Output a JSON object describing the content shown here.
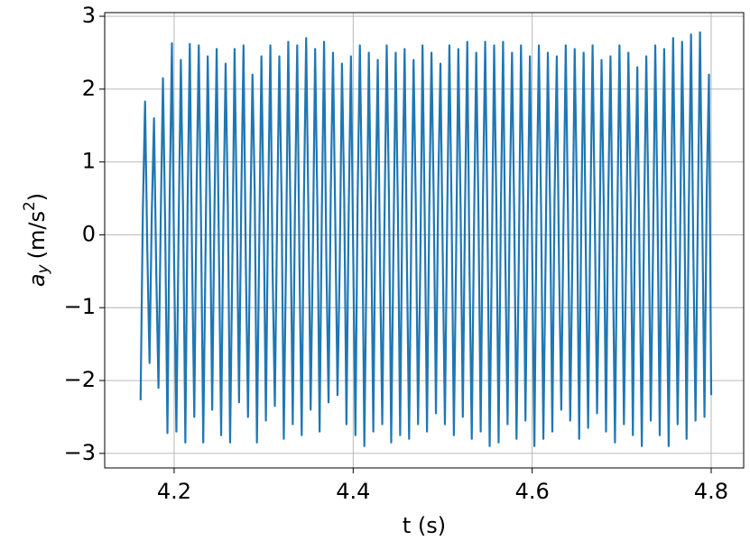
{
  "chart_data": {
    "type": "line",
    "x_label": "t (s)",
    "y_label": {
      "symbol": "a",
      "subscript": "y",
      "unit": "(m/s",
      "power": "2",
      "close": ")"
    },
    "xlim": [
      4.1224,
      4.8363
    ],
    "ylim": [
      -3.2,
      3.05
    ],
    "xticks": [
      4.2,
      4.4,
      4.6,
      4.8
    ],
    "yticks": [
      {
        "value": -3,
        "label": "−3"
      },
      {
        "value": -2,
        "label": "−2"
      },
      {
        "value": -1,
        "label": "−1"
      },
      0,
      1,
      2,
      3
    ],
    "grid": true,
    "series": [
      {
        "color": "#1f77b4",
        "x": [
          4.1625,
          4.165,
          4.1675,
          4.17,
          4.1725,
          4.175,
          4.1775,
          4.18,
          4.1825,
          4.185,
          4.1875,
          4.19,
          4.1925,
          4.195,
          4.1975,
          4.2,
          4.2025,
          4.205,
          4.2075,
          4.21,
          4.2125,
          4.215,
          4.2175,
          4.22,
          4.2225,
          4.225,
          4.2275,
          4.23,
          4.2325,
          4.235,
          4.2375,
          4.24,
          4.2425,
          4.245,
          4.2475,
          4.25,
          4.2525,
          4.255,
          4.2575,
          4.26,
          4.2625,
          4.265,
          4.2675,
          4.27,
          4.2725,
          4.275,
          4.2775,
          4.28,
          4.2825,
          4.285,
          4.2875,
          4.29,
          4.2925,
          4.295,
          4.2975,
          4.3,
          4.3025,
          4.305,
          4.3075,
          4.31,
          4.3125,
          4.315,
          4.3175,
          4.32,
          4.3225,
          4.325,
          4.3275,
          4.33,
          4.3325,
          4.335,
          4.3375,
          4.34,
          4.3425,
          4.345,
          4.3475,
          4.35,
          4.3525,
          4.355,
          4.3575,
          4.36,
          4.3625,
          4.365,
          4.3675,
          4.37,
          4.3725,
          4.375,
          4.3775,
          4.38,
          4.3825,
          4.385,
          4.3875,
          4.39,
          4.3925,
          4.395,
          4.3975,
          4.4,
          4.4025,
          4.405,
          4.4075,
          4.41,
          4.4125,
          4.415,
          4.4175,
          4.42,
          4.4225,
          4.425,
          4.4275,
          4.43,
          4.4325,
          4.435,
          4.4375,
          4.44,
          4.4425,
          4.445,
          4.4475,
          4.45,
          4.4525,
          4.455,
          4.4575,
          4.46,
          4.4625,
          4.465,
          4.4675,
          4.47,
          4.4725,
          4.475,
          4.4775,
          4.48,
          4.4825,
          4.485,
          4.4875,
          4.49,
          4.4925,
          4.495,
          4.4975,
          4.5,
          4.5025,
          4.505,
          4.5075,
          4.51,
          4.5125,
          4.515,
          4.5175,
          4.52,
          4.5225,
          4.525,
          4.5275,
          4.53,
          4.5325,
          4.535,
          4.5375,
          4.54,
          4.5425,
          4.545,
          4.5475,
          4.55,
          4.5525,
          4.555,
          4.5575,
          4.56,
          4.5625,
          4.565,
          4.5675,
          4.57,
          4.5725,
          4.575,
          4.5775,
          4.58,
          4.5825,
          4.585,
          4.5875,
          4.59,
          4.5925,
          4.595,
          4.5975,
          4.6,
          4.6025,
          4.605,
          4.6075,
          4.61,
          4.6125,
          4.615,
          4.6175,
          4.62,
          4.6225,
          4.625,
          4.6275,
          4.63,
          4.6325,
          4.635,
          4.6375,
          4.64,
          4.6425,
          4.645,
          4.6475,
          4.65,
          4.6525,
          4.655,
          4.6575,
          4.66,
          4.6625,
          4.665,
          4.6675,
          4.67,
          4.6725,
          4.675,
          4.6775,
          4.68,
          4.6825,
          4.685,
          4.6875,
          4.69,
          4.6925,
          4.695,
          4.6975,
          4.7,
          4.7025,
          4.705,
          4.7075,
          4.71,
          4.7125,
          4.715,
          4.7175,
          4.72,
          4.7225,
          4.725,
          4.7275,
          4.73,
          4.7325,
          4.735,
          4.7375,
          4.74,
          4.7425,
          4.745,
          4.7475,
          4.75,
          4.7525,
          4.755,
          4.7575,
          4.76,
          4.7625,
          4.765,
          4.7675,
          4.77,
          4.7725,
          4.775,
          4.7775,
          4.78,
          4.7825,
          4.785,
          4.7875,
          4.79,
          4.7925,
          4.795,
          4.7975,
          4.8
        ],
        "values": [
          -2.27,
          0.3,
          1.83,
          -0.2,
          -1.76,
          0.29,
          1.6,
          -0.5,
          -2.1,
          0.2,
          2.15,
          0.1,
          -2.72,
          0.5,
          2.63,
          -0.4,
          -2.7,
          0.1,
          2.4,
          0.3,
          -2.85,
          0.4,
          2.62,
          -0.3,
          -2.5,
          0.55,
          2.6,
          0.2,
          -2.85,
          -0.3,
          2.45,
          0.5,
          -2.4,
          0.3,
          2.55,
          -0.2,
          -2.75,
          0.2,
          2.35,
          0.4,
          -2.85,
          -0.4,
          2.55,
          0.3,
          -2.3,
          0.5,
          2.6,
          -0.3,
          -2.5,
          0.1,
          2.2,
          0.6,
          -2.85,
          -0.2,
          2.45,
          0.3,
          -2.55,
          0.4,
          2.6,
          -0.5,
          -2.35,
          0.2,
          2.45,
          0.5,
          -2.8,
          -0.3,
          2.65,
          0.2,
          -2.6,
          0.4,
          2.6,
          -0.4,
          -2.75,
          0.5,
          2.7,
          0.3,
          -2.4,
          -0.2,
          2.55,
          0.4,
          -2.7,
          0.3,
          2.65,
          -0.3,
          -2.3,
          0.6,
          2.5,
          0.2,
          -2.2,
          -0.4,
          2.35,
          0.5,
          -2.6,
          0.3,
          2.45,
          -0.2,
          -2.75,
          0.5,
          2.6,
          0.4,
          -2.9,
          -0.3,
          2.5,
          0.2,
          -2.7,
          0.4,
          2.4,
          -0.4,
          -2.6,
          0.2,
          2.6,
          0.5,
          -2.85,
          -0.2,
          2.5,
          0.3,
          -2.75,
          0.5,
          2.55,
          -0.3,
          -2.8,
          0.1,
          2.4,
          0.4,
          -2.6,
          -0.4,
          2.6,
          0.2,
          -2.7,
          0.3,
          2.5,
          0.5,
          -2.45,
          0.6,
          2.35,
          -0.2,
          -2.6,
          0.2,
          2.6,
          0.3,
          -2.75,
          -0.3,
          2.55,
          0.4,
          -2.5,
          0.4,
          2.65,
          -0.5,
          -2.8,
          0.1,
          2.5,
          0.3,
          -2.7,
          0.5,
          2.65,
          0.2,
          -2.9,
          -0.2,
          2.6,
          0.4,
          -2.85,
          0.3,
          2.65,
          -0.3,
          -2.6,
          0.5,
          2.5,
          0.2,
          -2.8,
          -0.4,
          2.6,
          0.5,
          -2.55,
          0.2,
          2.45,
          -0.2,
          -2.9,
          0.4,
          2.6,
          0.3,
          -2.8,
          -0.3,
          2.5,
          0.4,
          -2.7,
          0.5,
          2.45,
          -0.4,
          -2.4,
          0.2,
          2.6,
          0.3,
          -2.55,
          -0.2,
          2.55,
          0.5,
          -2.8,
          0.4,
          2.5,
          -0.3,
          -2.65,
          0.3,
          2.6,
          0.2,
          -2.45,
          -0.4,
          2.4,
          0.4,
          -2.7,
          0.5,
          2.45,
          -0.2,
          -2.85,
          0.1,
          2.6,
          0.3,
          -2.6,
          -0.3,
          2.5,
          0.5,
          -2.75,
          0.4,
          2.3,
          -0.4,
          -2.9,
          0.2,
          2.45,
          0.3,
          -2.55,
          -0.2,
          2.6,
          0.4,
          -2.75,
          0.5,
          2.55,
          -0.3,
          -2.9,
          0.3,
          2.7,
          0.2,
          -2.6,
          -0.4,
          2.65,
          0.5,
          -2.8,
          0.4,
          2.75,
          -0.2,
          -2.55,
          0.2,
          2.78,
          0.3,
          -2.5,
          0.6,
          2.2,
          -2.2
        ]
      }
    ]
  }
}
